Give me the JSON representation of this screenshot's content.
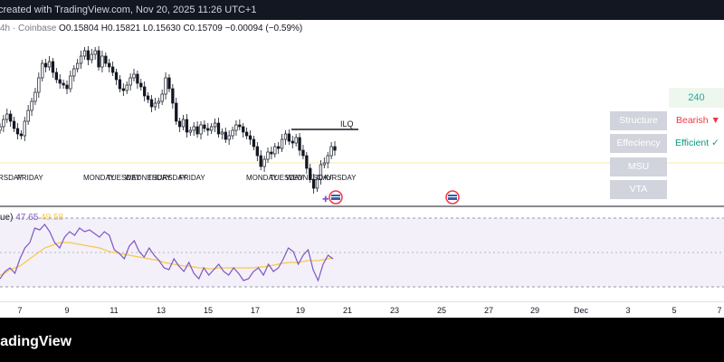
{
  "header": {
    "created_text": "created with TradingView.com, Nov 20, 2025 11:26 UTC+1"
  },
  "ohlc": {
    "prefix": "4h · Coinbase",
    "open_label": "O",
    "open": "0.15804",
    "high_label": "H",
    "high": "0.15821",
    "low_label": "L",
    "low": "0.15630",
    "close_label": "C",
    "close": "0.15709",
    "change": "−0.00094 (−0.59%)"
  },
  "chart": {
    "annotation": "ILQ",
    "day_labels_group1": [
      "RSDAY",
      "FRIDAY"
    ],
    "day_labels_group2": [
      "MONDAY",
      "TUESDAY",
      "WEDNESDAY",
      "THURSDAY",
      "FRIDAY"
    ],
    "day_labels_group3": [
      "MONDAY",
      "TUESDAY",
      "WEDNESDAY",
      "THURSDAY"
    ]
  },
  "panel": {
    "timeframe": "240",
    "rows": [
      {
        "label": "Structure",
        "value": "Bearish ▼",
        "color": "#f23645"
      },
      {
        "label": "Effeciency",
        "value": "Efficient ✓",
        "color": "#089981"
      },
      {
        "label": "MSU",
        "value": "",
        "color": "#089981"
      },
      {
        "label": "VTA",
        "value": "",
        "color": "#089981"
      }
    ]
  },
  "rsi": {
    "label": "ue)",
    "value_rsi": "47.65",
    "value_ma": "49.58"
  },
  "xaxis": {
    "ticks": [
      "7",
      "9",
      "11",
      "13",
      "15",
      "17",
      "19",
      "21",
      "23",
      "25",
      "27",
      "29",
      "Dec",
      "3",
      "5",
      "7"
    ]
  },
  "footer": {
    "brand": "radingView"
  },
  "colors": {
    "candle": "#131722",
    "rsi_line": "#7e57c2",
    "rsi_ma": "#f7c948",
    "rsi_band": "#7e57c2",
    "bearish": "#f23645",
    "efficient": "#089981"
  }
}
